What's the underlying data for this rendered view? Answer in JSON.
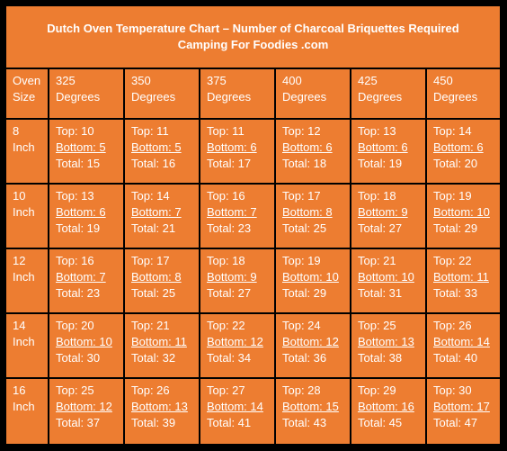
{
  "title": {
    "line1": "Dutch Oven Temperature Chart – Number of Charcoal Briquettes Required",
    "line2": "Camping For Foodies .com"
  },
  "header": {
    "first_col_line1": "Oven",
    "first_col_line2": "Size",
    "columns": [
      {
        "temp": "325",
        "unit": "Degrees"
      },
      {
        "temp": "350",
        "unit": "Degrees"
      },
      {
        "temp": "375",
        "unit": "Degrees"
      },
      {
        "temp": "400",
        "unit": "Degrees"
      },
      {
        "temp": "425",
        "unit": "Degrees"
      },
      {
        "temp": "450",
        "unit": "Degrees"
      }
    ]
  },
  "rows": [
    {
      "size": "8",
      "unit": "Inch",
      "cells": [
        {
          "top": "Top: 10",
          "bottom": "Bottom: 5",
          "total": "Total: 15"
        },
        {
          "top": "Top: 11",
          "bottom": "Bottom: 5",
          "total": "Total: 16"
        },
        {
          "top": "Top: 11",
          "bottom": "Bottom: 6",
          "total": "Total: 17"
        },
        {
          "top": "Top: 12",
          "bottom": "Bottom: 6",
          "total": "Total: 18"
        },
        {
          "top": "Top: 13",
          "bottom": "Bottom: 6",
          "total": "Total: 19"
        },
        {
          "top": "Top: 14",
          "bottom": "Bottom: 6",
          "total": "Total: 20"
        }
      ]
    },
    {
      "size": "10",
      "unit": "Inch",
      "cells": [
        {
          "top": "Top: 13",
          "bottom": "Bottom: 6",
          "total": "Total: 19"
        },
        {
          "top": "Top: 14",
          "bottom": "Bottom: 7",
          "total": "Total: 21"
        },
        {
          "top": "Top: 16",
          "bottom": "Bottom: 7",
          "total": "Total: 23"
        },
        {
          "top": "Top: 17",
          "bottom": "Bottom: 8",
          "total": "Total: 25"
        },
        {
          "top": "Top: 18",
          "bottom": "Bottom: 9",
          "total": "Total: 27"
        },
        {
          "top": "Top: 19",
          "bottom": "Bottom: 10",
          "total": "Total: 29"
        }
      ]
    },
    {
      "size": "12",
      "unit": "Inch",
      "cells": [
        {
          "top": "Top: 16",
          "bottom": "Bottom: 7",
          "total": "Total: 23"
        },
        {
          "top": "Top: 17",
          "bottom": "Bottom: 8",
          "total": "Total: 25"
        },
        {
          "top": "Top: 18",
          "bottom": "Bottom: 9",
          "total": "Total: 27"
        },
        {
          "top": "Top: 19",
          "bottom": "Bottom: 10",
          "total": "Total: 29"
        },
        {
          "top": "Top: 21",
          "bottom": "Bottom: 10",
          "total": "Total: 31"
        },
        {
          "top": "Top: 22",
          "bottom": "Bottom: 11",
          "total": "Total: 33"
        }
      ]
    },
    {
      "size": "14",
      "unit": "Inch",
      "cells": [
        {
          "top": "Top: 20",
          "bottom": "Bottom: 10",
          "total": "Total: 30"
        },
        {
          "top": "Top: 21",
          "bottom": "Bottom: 11",
          "total": "Total: 32"
        },
        {
          "top": "Top: 22",
          "bottom": "Bottom: 12",
          "total": "Total: 34"
        },
        {
          "top": "Top: 24",
          "bottom": "Bottom: 12",
          "total": "Total: 36"
        },
        {
          "top": "Top: 25",
          "bottom": "Bottom: 13",
          "total": "Total: 38"
        },
        {
          "top": "Top: 26",
          "bottom": "Bottom: 14",
          "total": "Total: 40"
        }
      ]
    },
    {
      "size": "16",
      "unit": "Inch",
      "cells": [
        {
          "top": "Top: 25",
          "bottom": "Bottom: 12",
          "total": "Total: 37"
        },
        {
          "top": "Top: 26",
          "bottom": "Bottom: 13",
          "total": "Total: 39"
        },
        {
          "top": "Top: 27",
          "bottom": "Bottom: 14",
          "total": "Total: 41"
        },
        {
          "top": "Top: 28",
          "bottom": "Bottom: 15",
          "total": "Total: 43"
        },
        {
          "top": "Top: 29",
          "bottom": "Bottom: 16",
          "total": "Total: 45"
        },
        {
          "top": "Top: 30",
          "bottom": "Bottom: 17",
          "total": "Total: 47"
        }
      ]
    }
  ],
  "colors": {
    "cell_background": "#ED7D31",
    "grid_lines": "#000000",
    "text": "#FFFFFF"
  }
}
